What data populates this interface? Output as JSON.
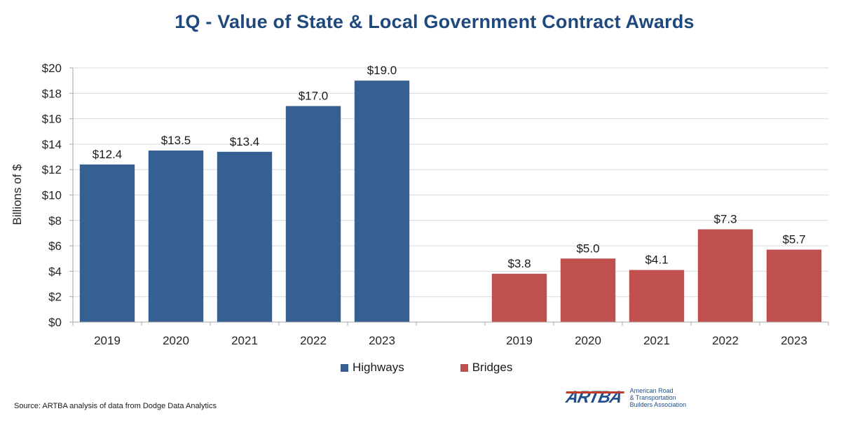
{
  "chart_data": {
    "type": "bar",
    "title": "1Q - Value of State & Local Government Contract Awards",
    "xlabel": "",
    "ylabel": "Billions of $",
    "ylim": [
      0,
      20
    ],
    "yticks": [
      0,
      2,
      4,
      6,
      8,
      10,
      12,
      14,
      16,
      18,
      20
    ],
    "ytick_labels": [
      "$0",
      "$2",
      "$4",
      "$6",
      "$8",
      "$10",
      "$12",
      "$14",
      "$16",
      "$18",
      "$20"
    ],
    "grid": true,
    "legend_position": "bottom",
    "groups": [
      {
        "name": "Highways",
        "color": "#376092",
        "categories": [
          "2019",
          "2020",
          "2021",
          "2022",
          "2023"
        ],
        "values": [
          12.4,
          13.5,
          13.4,
          17.0,
          19.0
        ],
        "labels": [
          "$12.4",
          "$13.5",
          "$13.4",
          "$17.0",
          "$19.0"
        ]
      },
      {
        "name": "Bridges",
        "color": "#c0504d",
        "categories": [
          "2019",
          "2020",
          "2021",
          "2022",
          "2023"
        ],
        "values": [
          3.8,
          5.0,
          4.1,
          7.3,
          5.7
        ],
        "labels": [
          "$3.8",
          "$5.0",
          "$4.1",
          "$7.3",
          "$5.7"
        ]
      }
    ]
  },
  "legend": [
    {
      "label": "Highways",
      "color": "#376092"
    },
    {
      "label": "Bridges",
      "color": "#c0504d"
    }
  ],
  "footer": {
    "source": "Source: ARTBA analysis of data from Dodge Data Analytics",
    "logo_mark": "ARTBA",
    "logo_line1": "American Road",
    "logo_line2": "& Transportation",
    "logo_line3": "Builders Association"
  }
}
